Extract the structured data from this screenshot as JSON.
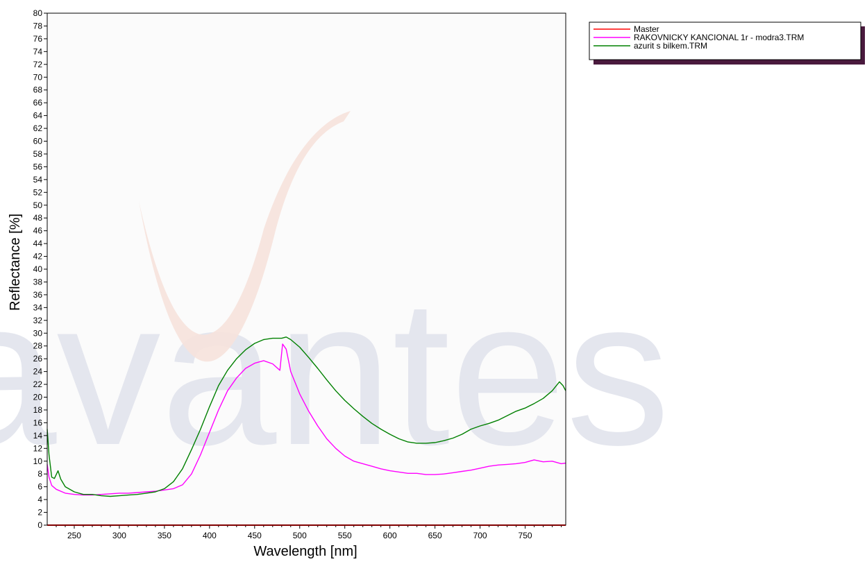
{
  "chart_data": {
    "type": "line",
    "title": "",
    "xlabel": "Wavelength [nm]",
    "ylabel": "Reflectance [%]",
    "xlim": [
      220,
      795
    ],
    "ylim": [
      0,
      80
    ],
    "x_ticks": [
      250,
      300,
      350,
      400,
      450,
      500,
      550,
      600,
      650,
      700,
      750
    ],
    "y_tick_step": 2,
    "grid": false,
    "legend_position": "top-right outside plot",
    "plot_background": "#fbfbfb",
    "watermark": "avantes",
    "series": [
      {
        "name": "Master",
        "color": "#ff0000",
        "points": [
          [
            220,
            0
          ],
          [
            795,
            0
          ]
        ]
      },
      {
        "name": "RAKOVNICKY KANCIONAL 1r - modra3.TRM",
        "color": "#ff00ff",
        "points": [
          [
            220,
            9.5
          ],
          [
            222,
            7.5
          ],
          [
            225,
            6.2
          ],
          [
            230,
            5.6
          ],
          [
            240,
            5.0
          ],
          [
            250,
            4.8
          ],
          [
            260,
            4.7
          ],
          [
            270,
            4.7
          ],
          [
            280,
            4.8
          ],
          [
            290,
            4.9
          ],
          [
            300,
            5.0
          ],
          [
            310,
            5.0
          ],
          [
            320,
            5.1
          ],
          [
            330,
            5.2
          ],
          [
            340,
            5.3
          ],
          [
            350,
            5.5
          ],
          [
            360,
            5.7
          ],
          [
            370,
            6.3
          ],
          [
            380,
            8.0
          ],
          [
            390,
            11.0
          ],
          [
            400,
            14.5
          ],
          [
            410,
            18.0
          ],
          [
            420,
            21.0
          ],
          [
            430,
            23.0
          ],
          [
            440,
            24.5
          ],
          [
            450,
            25.3
          ],
          [
            460,
            25.7
          ],
          [
            470,
            25.2
          ],
          [
            478,
            24.2
          ],
          [
            481,
            28.3
          ],
          [
            485,
            27.5
          ],
          [
            490,
            24.0
          ],
          [
            500,
            20.5
          ],
          [
            510,
            17.8
          ],
          [
            520,
            15.5
          ],
          [
            530,
            13.5
          ],
          [
            540,
            12.0
          ],
          [
            550,
            10.8
          ],
          [
            560,
            10.0
          ],
          [
            570,
            9.6
          ],
          [
            580,
            9.2
          ],
          [
            590,
            8.8
          ],
          [
            600,
            8.5
          ],
          [
            610,
            8.3
          ],
          [
            620,
            8.1
          ],
          [
            630,
            8.1
          ],
          [
            640,
            7.9
          ],
          [
            650,
            7.9
          ],
          [
            660,
            8.0
          ],
          [
            670,
            8.2
          ],
          [
            680,
            8.4
          ],
          [
            690,
            8.6
          ],
          [
            700,
            8.9
          ],
          [
            710,
            9.2
          ],
          [
            720,
            9.4
          ],
          [
            730,
            9.5
          ],
          [
            740,
            9.6
          ],
          [
            750,
            9.8
          ],
          [
            760,
            10.2
          ],
          [
            770,
            9.9
          ],
          [
            780,
            10.0
          ],
          [
            790,
            9.6
          ],
          [
            795,
            9.7
          ]
        ]
      },
      {
        "name": "azurit s bilkem.TRM",
        "color": "#008000",
        "points": [
          [
            220,
            15.0
          ],
          [
            222,
            11.0
          ],
          [
            225,
            7.5
          ],
          [
            228,
            7.3
          ],
          [
            232,
            8.5
          ],
          [
            235,
            7.2
          ],
          [
            240,
            6.0
          ],
          [
            250,
            5.2
          ],
          [
            260,
            4.8
          ],
          [
            270,
            4.8
          ],
          [
            280,
            4.6
          ],
          [
            290,
            4.5
          ],
          [
            300,
            4.6
          ],
          [
            310,
            4.7
          ],
          [
            320,
            4.8
          ],
          [
            330,
            5.0
          ],
          [
            340,
            5.2
          ],
          [
            350,
            5.7
          ],
          [
            360,
            6.8
          ],
          [
            370,
            8.8
          ],
          [
            380,
            11.8
          ],
          [
            390,
            15.0
          ],
          [
            400,
            18.5
          ],
          [
            410,
            21.8
          ],
          [
            420,
            24.2
          ],
          [
            430,
            26.0
          ],
          [
            440,
            27.4
          ],
          [
            450,
            28.4
          ],
          [
            460,
            29.0
          ],
          [
            470,
            29.2
          ],
          [
            480,
            29.2
          ],
          [
            485,
            29.4
          ],
          [
            490,
            29.0
          ],
          [
            500,
            27.8
          ],
          [
            510,
            26.2
          ],
          [
            520,
            24.5
          ],
          [
            530,
            22.7
          ],
          [
            540,
            21.0
          ],
          [
            550,
            19.5
          ],
          [
            560,
            18.2
          ],
          [
            570,
            17.0
          ],
          [
            580,
            15.9
          ],
          [
            590,
            15.0
          ],
          [
            600,
            14.2
          ],
          [
            610,
            13.5
          ],
          [
            620,
            13.0
          ],
          [
            630,
            12.8
          ],
          [
            640,
            12.8
          ],
          [
            650,
            12.9
          ],
          [
            660,
            13.2
          ],
          [
            670,
            13.6
          ],
          [
            680,
            14.2
          ],
          [
            690,
            15.0
          ],
          [
            700,
            15.5
          ],
          [
            710,
            15.9
          ],
          [
            720,
            16.4
          ],
          [
            730,
            17.1
          ],
          [
            740,
            17.8
          ],
          [
            750,
            18.3
          ],
          [
            760,
            19.0
          ],
          [
            770,
            19.8
          ],
          [
            780,
            21.0
          ],
          [
            788,
            22.4
          ],
          [
            792,
            21.8
          ],
          [
            795,
            21.0
          ]
        ]
      }
    ]
  }
}
